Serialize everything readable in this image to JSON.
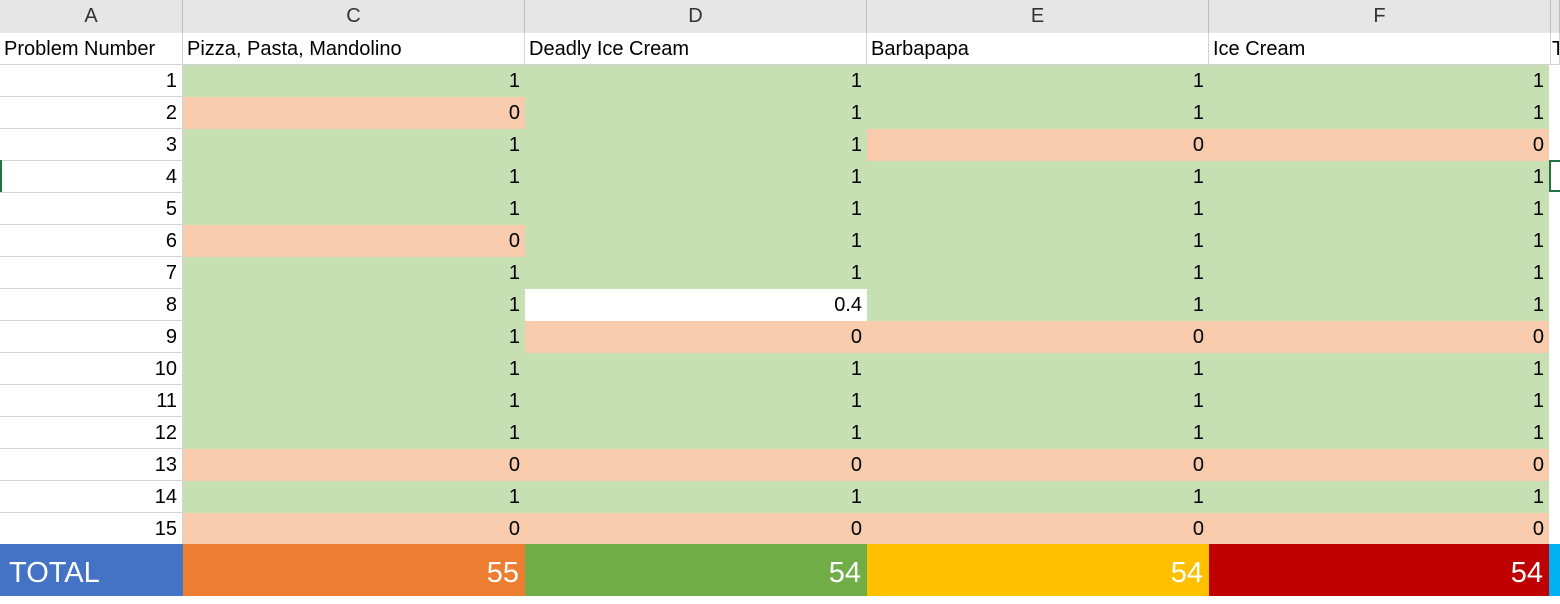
{
  "column_headers": [
    "A",
    "C",
    "D",
    "E",
    "F"
  ],
  "name_row": {
    "a": "Problem Number",
    "c": "Pizza, Pasta, Mandolino",
    "d": "Deadly Ice Cream",
    "e": "Barbapapa",
    "f": "Ice Cream",
    "g": "T"
  },
  "rows": [
    {
      "n": "1",
      "c": "1",
      "d": "1",
      "e": "1",
      "f": "1"
    },
    {
      "n": "2",
      "c": "0",
      "d": "1",
      "e": "1",
      "f": "1"
    },
    {
      "n": "3",
      "c": "1",
      "d": "1",
      "e": "0",
      "f": "0"
    },
    {
      "n": "4",
      "c": "1",
      "d": "1",
      "e": "1",
      "f": "1"
    },
    {
      "n": "5",
      "c": "1",
      "d": "1",
      "e": "1",
      "f": "1"
    },
    {
      "n": "6",
      "c": "0",
      "d": "1",
      "e": "1",
      "f": "1"
    },
    {
      "n": "7",
      "c": "1",
      "d": "1",
      "e": "1",
      "f": "1"
    },
    {
      "n": "8",
      "c": "1",
      "d": "0.4",
      "e": "1",
      "f": "1"
    },
    {
      "n": "9",
      "c": "1",
      "d": "0",
      "e": "0",
      "f": "0"
    },
    {
      "n": "10",
      "c": "1",
      "d": "1",
      "e": "1",
      "f": "1"
    },
    {
      "n": "11",
      "c": "1",
      "d": "1",
      "e": "1",
      "f": "1"
    },
    {
      "n": "12",
      "c": "1",
      "d": "1",
      "e": "1",
      "f": "1"
    },
    {
      "n": "13",
      "c": "0",
      "d": "0",
      "e": "0",
      "f": "0"
    },
    {
      "n": "14",
      "c": "1",
      "d": "1",
      "e": "1",
      "f": "1"
    },
    {
      "n": "15",
      "c": "0",
      "d": "0",
      "e": "0",
      "f": "0"
    }
  ],
  "total": {
    "label": "TOTAL",
    "c": "55",
    "d": "54",
    "e": "54",
    "f": "54"
  },
  "colors": {
    "green_fill": "#c6e0b4",
    "red_fill": "#f8cbad",
    "total_label_bg": "#4472c4",
    "total_c_bg": "#ed7d31",
    "total_d_bg": "#70ad47",
    "total_e_bg": "#ffc000",
    "total_f_bg": "#c00000",
    "selection_border": "#217346",
    "edge_blue": "#00b0f0"
  }
}
